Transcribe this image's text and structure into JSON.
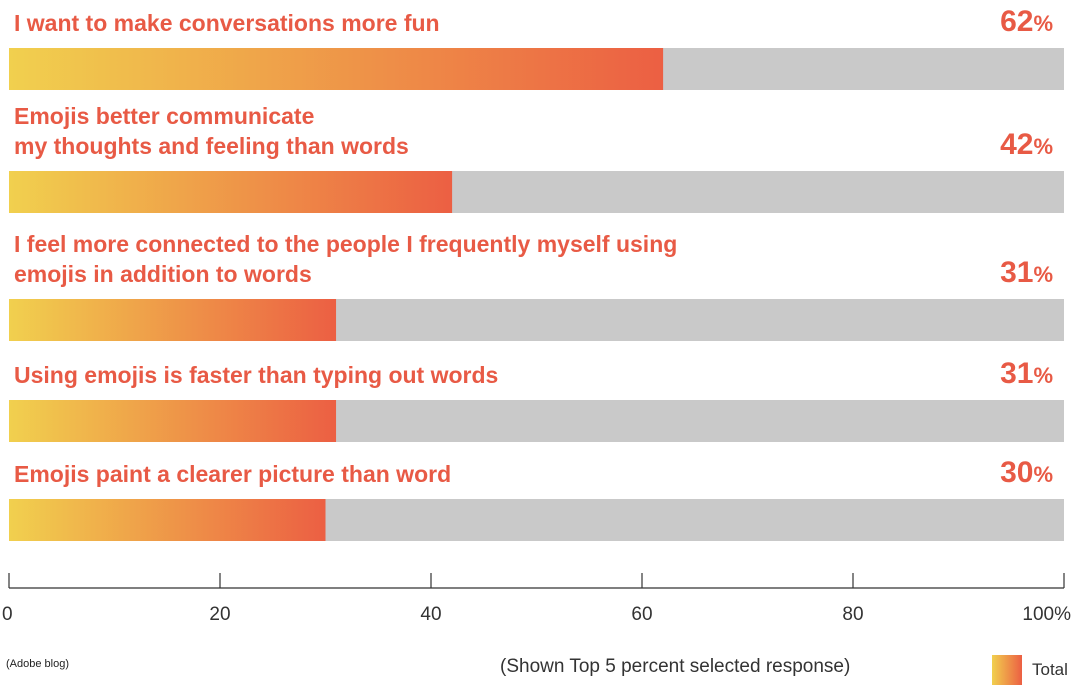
{
  "chart_data": {
    "type": "bar",
    "orientation": "horizontal",
    "categories": [
      [
        "I want to make conversations more fun"
      ],
      [
        "Emojis better communicate",
        "my thoughts and feeling than words"
      ],
      [
        "I  feel more connected to the people I frequently myself using",
        "emojis in addition to words"
      ],
      [
        "Using emojis is faster than typing out words"
      ],
      [
        "Emojis paint a clearer picture than word"
      ]
    ],
    "series": [
      {
        "name": "Total",
        "values": [
          62,
          42,
          31,
          31,
          30
        ]
      }
    ],
    "value_labels": [
      "62",
      "42",
      "31",
      "31",
      "30"
    ],
    "value_suffix": "%",
    "xlim": [
      0,
      100
    ],
    "x_ticks": [
      "0",
      "20",
      "40",
      "60",
      "80",
      "100%"
    ],
    "grid": false,
    "legend": "bottom-right"
  },
  "colors": {
    "gradient_start": "#f1d04e",
    "gradient_end": "#ec5f43",
    "track": "#c9c9c9",
    "label": "#e85a45",
    "axis": "#333333"
  },
  "footer": {
    "source": "(Adobe blog)",
    "note": "(Shown Top 5 percent selected response)"
  },
  "legend": {
    "label": "Total"
  }
}
